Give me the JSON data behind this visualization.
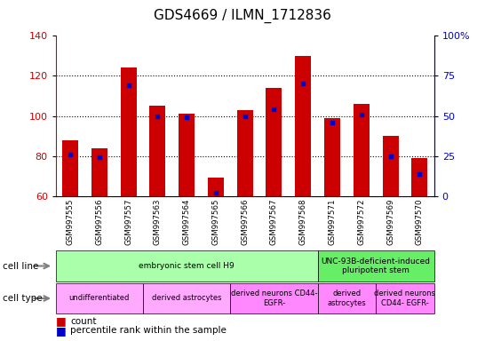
{
  "title": "GDS4669 / ILMN_1712836",
  "samples": [
    "GSM997555",
    "GSM997556",
    "GSM997557",
    "GSM997563",
    "GSM997564",
    "GSM997565",
    "GSM997566",
    "GSM997567",
    "GSM997568",
    "GSM997571",
    "GSM997572",
    "GSM997569",
    "GSM997570"
  ],
  "count_values": [
    88,
    84,
    124,
    105,
    101,
    69,
    103,
    114,
    130,
    99,
    106,
    90,
    79
  ],
  "percentile_values": [
    26,
    24,
    69,
    50,
    49,
    2,
    50,
    54,
    70,
    46,
    51,
    25,
    14
  ],
  "ylim_left": [
    60,
    140
  ],
  "ylim_right": [
    0,
    100
  ],
  "left_yticks": [
    60,
    80,
    100,
    120,
    140
  ],
  "right_yticks": [
    0,
    25,
    50,
    75,
    100
  ],
  "bar_color": "#cc0000",
  "dot_color": "#0000cc",
  "cell_line_groups": [
    {
      "text": "embryonic stem cell H9",
      "start": 0,
      "end": 8,
      "color": "#aaffaa"
    },
    {
      "text": "UNC-93B-deficient-induced\npluripotent stem",
      "start": 9,
      "end": 12,
      "color": "#66ee66"
    }
  ],
  "cell_type_groups": [
    {
      "text": "undifferentiated",
      "start": 0,
      "end": 2,
      "color": "#ffaaff"
    },
    {
      "text": "derived astrocytes",
      "start": 3,
      "end": 5,
      "color": "#ffaaff"
    },
    {
      "text": "derived neurons CD44-\nEGFR-",
      "start": 6,
      "end": 8,
      "color": "#ff88ff"
    },
    {
      "text": "derived\nastrocytes",
      "start": 9,
      "end": 10,
      "color": "#ff88ff"
    },
    {
      "text": "derived neurons\nCD44- EGFR-",
      "start": 11,
      "end": 12,
      "color": "#ff88ff"
    }
  ],
  "tick_label_color_left": "#cc0000",
  "tick_label_color_right": "#0000cc",
  "xtick_bg_color": "#cccccc",
  "bg_color": "#ffffff"
}
